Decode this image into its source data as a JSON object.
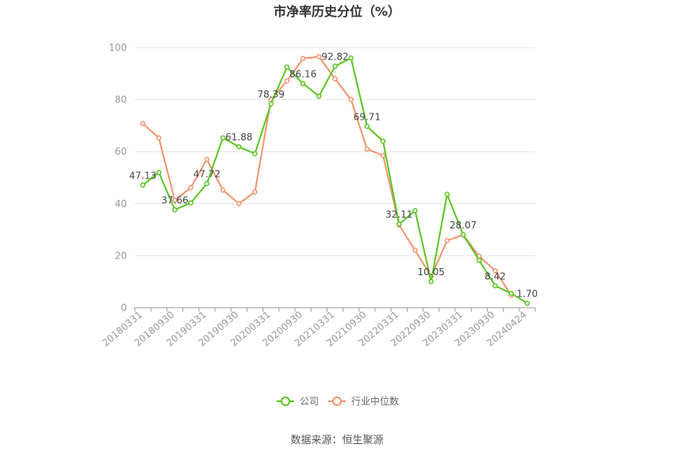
{
  "chart_data": {
    "type": "line",
    "title": "市净率历史分位（%）",
    "source": "数据来源：恒生聚源",
    "ylim": [
      0,
      100
    ],
    "yticks": [
      0,
      20,
      40,
      60,
      80,
      100
    ],
    "grid": true,
    "legend_position": "bottom",
    "x_tick_labels": [
      "20180331",
      "20180930",
      "20190331",
      "20190930",
      "20200331",
      "20200930",
      "20210331",
      "20210930",
      "20220331",
      "20220930",
      "20230331",
      "20230930",
      "20240424"
    ],
    "x": [
      "20180331",
      "20180630",
      "20180930",
      "20181231",
      "20190331",
      "20190630",
      "20190930",
      "20191231",
      "20200331",
      "20200630",
      "20200930",
      "20201231",
      "20210331",
      "20210630",
      "20210930",
      "20211231",
      "20220331",
      "20220630",
      "20220930",
      "20221231",
      "20230331",
      "20230630",
      "20230930",
      "20231231",
      "20240424"
    ],
    "series": [
      {
        "name": "公司",
        "color": "#5ac520",
        "values": [
          47.13,
          52.0,
          37.66,
          40.3,
          47.72,
          65.3,
          61.88,
          59.2,
          78.39,
          92.5,
          86.16,
          81.3,
          92.82,
          96.0,
          69.71,
          64.0,
          32.11,
          37.3,
          10.05,
          43.6,
          28.07,
          18.2,
          8.42,
          5.5,
          1.7
        ],
        "labels": {
          "0": "47.13",
          "2": "37.66",
          "4": "47.72",
          "6": "61.88",
          "8": "78.39",
          "10": "86.16",
          "12": "92.82",
          "14": "69.71",
          "16": "32.11",
          "18": "10.05",
          "20": "28.07",
          "22": "8.42",
          "24": "1.70"
        }
      },
      {
        "name": "行业中位数",
        "color": "#f4936b",
        "values": [
          70.8,
          65.3,
          41.3,
          46.2,
          57.0,
          45.2,
          40.0,
          44.5,
          80.0,
          87.2,
          95.8,
          96.5,
          88.0,
          80.0,
          61.0,
          58.5,
          31.8,
          22.1,
          12.0,
          25.8,
          28.0,
          19.8,
          14.2,
          4.8,
          null
        ]
      }
    ]
  }
}
